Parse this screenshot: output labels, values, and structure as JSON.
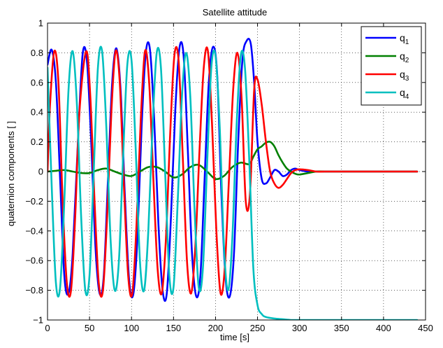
{
  "chart_data": {
    "type": "line",
    "title": "Satellite attitude",
    "xlabel": "time [s]",
    "ylabel": "quaternion components [ ]",
    "xlim": [
      0,
      450
    ],
    "ylim": [
      -1,
      1
    ],
    "xticks": [
      0,
      50,
      100,
      150,
      200,
      250,
      300,
      350,
      400,
      450
    ],
    "yticks": [
      -1,
      -0.8,
      -0.6,
      -0.4,
      -0.2,
      0,
      0.2,
      0.4,
      0.6,
      0.8,
      1
    ],
    "xtick_labels": [
      "0",
      "50",
      "100",
      "150",
      "200",
      "250",
      "300",
      "350",
      "400",
      "450"
    ],
    "ytick_labels": [
      "−1",
      "−0.8",
      "−0.6",
      "−0.4",
      "−0.2",
      "0",
      "0.2",
      "0.4",
      "0.6",
      "0.8",
      "1"
    ],
    "grid": true,
    "grid_style": "dotted",
    "legend_position": "top-right",
    "series": [
      {
        "name": "q1",
        "legend_base": "q",
        "legend_sub": "1",
        "color": "#0000ff",
        "x": [
          0,
          5,
          10,
          15,
          20,
          25,
          30,
          37,
          42,
          47,
          52,
          57,
          62,
          67,
          72,
          77,
          82,
          87,
          92,
          97,
          102,
          107,
          112,
          117,
          122,
          127,
          132,
          137,
          142,
          147,
          152,
          157,
          162,
          167,
          172,
          177,
          182,
          187,
          192,
          197,
          202,
          207,
          212,
          217,
          222,
          227,
          232,
          237,
          242,
          246,
          250,
          255,
          260,
          265,
          270,
          275,
          280,
          285,
          290,
          295,
          300,
          310,
          320,
          330,
          340,
          360,
          380,
          400,
          440
        ],
        "y": [
          0.72,
          0.82,
          0.6,
          -0.05,
          -0.7,
          -0.82,
          -0.55,
          0.3,
          0.8,
          0.74,
          0.2,
          -0.5,
          -0.82,
          -0.7,
          -0.05,
          0.6,
          0.83,
          0.55,
          -0.15,
          -0.72,
          -0.83,
          -0.45,
          0.3,
          0.8,
          0.82,
          0.35,
          -0.35,
          -0.8,
          -0.82,
          -0.3,
          0.4,
          0.83,
          0.78,
          0.15,
          -0.55,
          -0.84,
          -0.7,
          -0.05,
          0.6,
          0.84,
          0.65,
          -0.15,
          -0.72,
          -0.84,
          -0.55,
          0.2,
          0.75,
          0.88,
          0.86,
          0.6,
          0.2,
          -0.05,
          -0.08,
          -0.04,
          0.01,
          0.0,
          -0.03,
          -0.02,
          0.01,
          0.02,
          0.01,
          0.0,
          0.0,
          0.0,
          0.0,
          0.0,
          0.0,
          0.0,
          0.0
        ]
      },
      {
        "name": "q2",
        "legend_base": "q",
        "legend_sub": "2",
        "color": "#008000",
        "x": [
          0,
          10,
          20,
          30,
          40,
          50,
          60,
          70,
          80,
          90,
          100,
          110,
          120,
          130,
          140,
          150,
          160,
          170,
          180,
          190,
          200,
          210,
          220,
          230,
          240,
          245,
          250,
          255,
          260,
          265,
          270,
          275,
          280,
          285,
          290,
          295,
          300,
          310,
          320,
          330,
          340,
          360,
          400,
          440
        ],
        "y": [
          0.0,
          0.005,
          0.01,
          0.0,
          -0.01,
          -0.01,
          0.01,
          0.02,
          0.0,
          -0.02,
          -0.03,
          0.0,
          0.03,
          0.03,
          0.0,
          -0.04,
          -0.02,
          0.03,
          0.045,
          0.0,
          -0.05,
          -0.03,
          0.03,
          0.06,
          0.05,
          0.1,
          0.15,
          0.17,
          0.195,
          0.2,
          0.17,
          0.11,
          0.06,
          0.02,
          0.0,
          -0.015,
          -0.02,
          -0.01,
          0.0,
          0.0,
          0.0,
          0.0,
          0.0,
          0.0
        ]
      },
      {
        "name": "q3",
        "legend_base": "q",
        "legend_sub": "3",
        "color": "#ff0000",
        "x": [
          0,
          3,
          8,
          13,
          18,
          23,
          28,
          33,
          38,
          46,
          51,
          56,
          61,
          66,
          71,
          76,
          81,
          86,
          91,
          96,
          101,
          106,
          111,
          116,
          121,
          126,
          131,
          136,
          141,
          146,
          151,
          156,
          161,
          166,
          171,
          176,
          181,
          186,
          191,
          196,
          201,
          206,
          211,
          216,
          221,
          226,
          231,
          236,
          241,
          246,
          250,
          255,
          260,
          265,
          270,
          275,
          280,
          285,
          290,
          295,
          300,
          310,
          320,
          330,
          340,
          360,
          400,
          440
        ],
        "y": [
          0.0,
          0.45,
          0.81,
          0.6,
          -0.2,
          -0.75,
          -0.8,
          -0.3,
          0.4,
          0.81,
          0.5,
          -0.2,
          -0.75,
          -0.8,
          -0.3,
          0.4,
          0.81,
          0.6,
          -0.1,
          -0.7,
          -0.82,
          -0.35,
          0.35,
          0.81,
          0.6,
          -0.05,
          -0.65,
          -0.82,
          -0.45,
          0.25,
          0.78,
          0.75,
          0.1,
          -0.6,
          -0.82,
          -0.5,
          0.15,
          0.7,
          0.81,
          0.3,
          -0.4,
          -0.82,
          -0.65,
          -0.05,
          0.55,
          0.8,
          0.5,
          -0.2,
          -0.15,
          0.55,
          0.62,
          0.45,
          0.2,
          0.0,
          -0.08,
          -0.11,
          -0.09,
          -0.05,
          -0.01,
          0.01,
          0.015,
          0.01,
          0.0,
          0.0,
          0.0,
          0.0,
          0.0,
          0.0
        ]
      },
      {
        "name": "q4",
        "legend_base": "q",
        "legend_sub": "4",
        "color": "#00bfbf",
        "x": [
          0,
          5,
          10,
          15,
          20,
          25,
          30,
          35,
          40,
          45,
          50,
          55,
          60,
          65,
          70,
          75,
          80,
          85,
          90,
          95,
          100,
          105,
          110,
          115,
          120,
          125,
          130,
          135,
          140,
          145,
          150,
          155,
          160,
          165,
          170,
          175,
          180,
          185,
          190,
          195,
          200,
          205,
          210,
          215,
          220,
          225,
          230,
          235,
          240,
          245,
          250,
          255,
          260,
          270,
          280,
          290,
          300,
          320,
          350,
          400,
          440
        ],
        "y": [
          0.7,
          -0.1,
          -0.75,
          -0.78,
          -0.2,
          0.55,
          0.81,
          0.45,
          -0.3,
          -0.8,
          -0.7,
          0.0,
          0.7,
          0.81,
          0.3,
          -0.45,
          -0.8,
          -0.6,
          0.1,
          0.72,
          0.75,
          0.15,
          -0.6,
          -0.8,
          -0.4,
          0.3,
          0.8,
          0.7,
          0.0,
          -0.7,
          -0.78,
          -0.2,
          0.5,
          0.8,
          0.5,
          -0.25,
          -0.78,
          -0.65,
          0.05,
          0.7,
          0.78,
          0.3,
          -0.5,
          -0.8,
          -0.45,
          0.3,
          0.78,
          0.7,
          0.1,
          -0.65,
          -0.9,
          -0.96,
          -0.98,
          -0.99,
          -0.995,
          -1.0,
          -1.0,
          -1.0,
          -1.0,
          -1.0,
          -1.0
        ]
      }
    ]
  }
}
